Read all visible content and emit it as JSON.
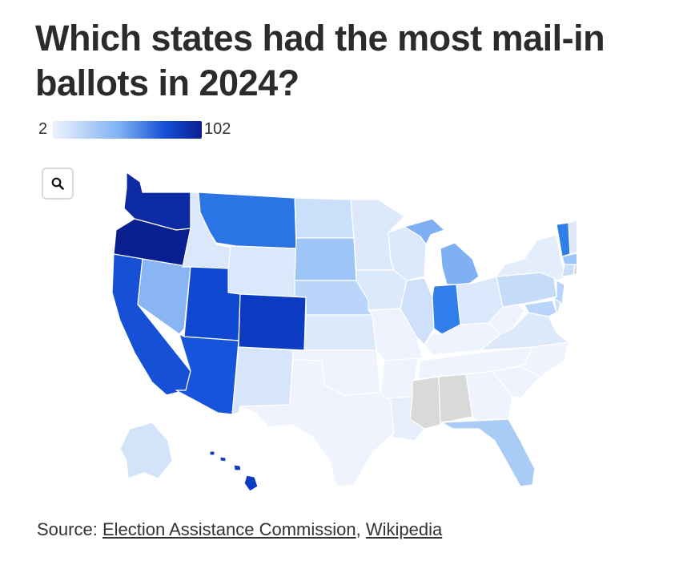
{
  "title": "Which states had the most mail-in ballots in 2024?",
  "legend": {
    "min": "2",
    "max": "102",
    "low_color": "#eef3fd",
    "high_color": "#0a1f8f"
  },
  "zoom_icon": "search-icon",
  "source": {
    "label": "Source:",
    "link1": "Election Assistance Commission",
    "separator": ",",
    "link2": "Wikipedia"
  },
  "map": {
    "type": "choropleth",
    "region": "United States",
    "no_data_states": [
      "MS",
      "AL",
      "RI"
    ],
    "no_data_color": "#d9d9d9",
    "state_colors": {
      "WA": "#0b2aa3",
      "OR": "#0a1f8f",
      "CA": "#1550d6",
      "NV": "#8ab5f5",
      "ID": "#dbe8fb",
      "MT": "#2a74e6",
      "WY": "#dbe8fb",
      "UT": "#0f49d2",
      "AZ": "#1654dc",
      "CO": "#0a3bc0",
      "NM": "#d6e5fb",
      "ND": "#cadffa",
      "SD": "#9ec5f7",
      "NE": "#b9d5f9",
      "KS": "#dce9fb",
      "OK": "#eef3fd",
      "TX": "#eef3fd",
      "MN": "#dde9fb",
      "IA": "#dce9fb",
      "MO": "#eef3fd",
      "AR": "#eef3fd",
      "LA": "#e6eefc",
      "WI": "#dce9fb",
      "IL": "#cfe1fa",
      "MI": "#7fb0f3",
      "IN": "#2f7ee9",
      "OH": "#dbe8fb",
      "KY": "#eef3fd",
      "TN": "#eef3fd",
      "GA": "#eef3fd",
      "FL": "#a9ccf7",
      "SC": "#eef3fd",
      "NC": "#eef3fd",
      "VA": "#dde9fb",
      "WV": "#eef3fd",
      "PA": "#c5dcf9",
      "NY": "#e3edfc",
      "VT": "#2f7ee9",
      "NH": "#dde9fb",
      "ME": "#c7ddf9",
      "MA": "#9ec5f7",
      "CT": "#c9def9",
      "NJ": "#b9d5f9",
      "DE": "#cadffa",
      "MD": "#b9d5f9",
      "AK": "#d3e4fa",
      "HI": "#0d3cc4"
    }
  }
}
